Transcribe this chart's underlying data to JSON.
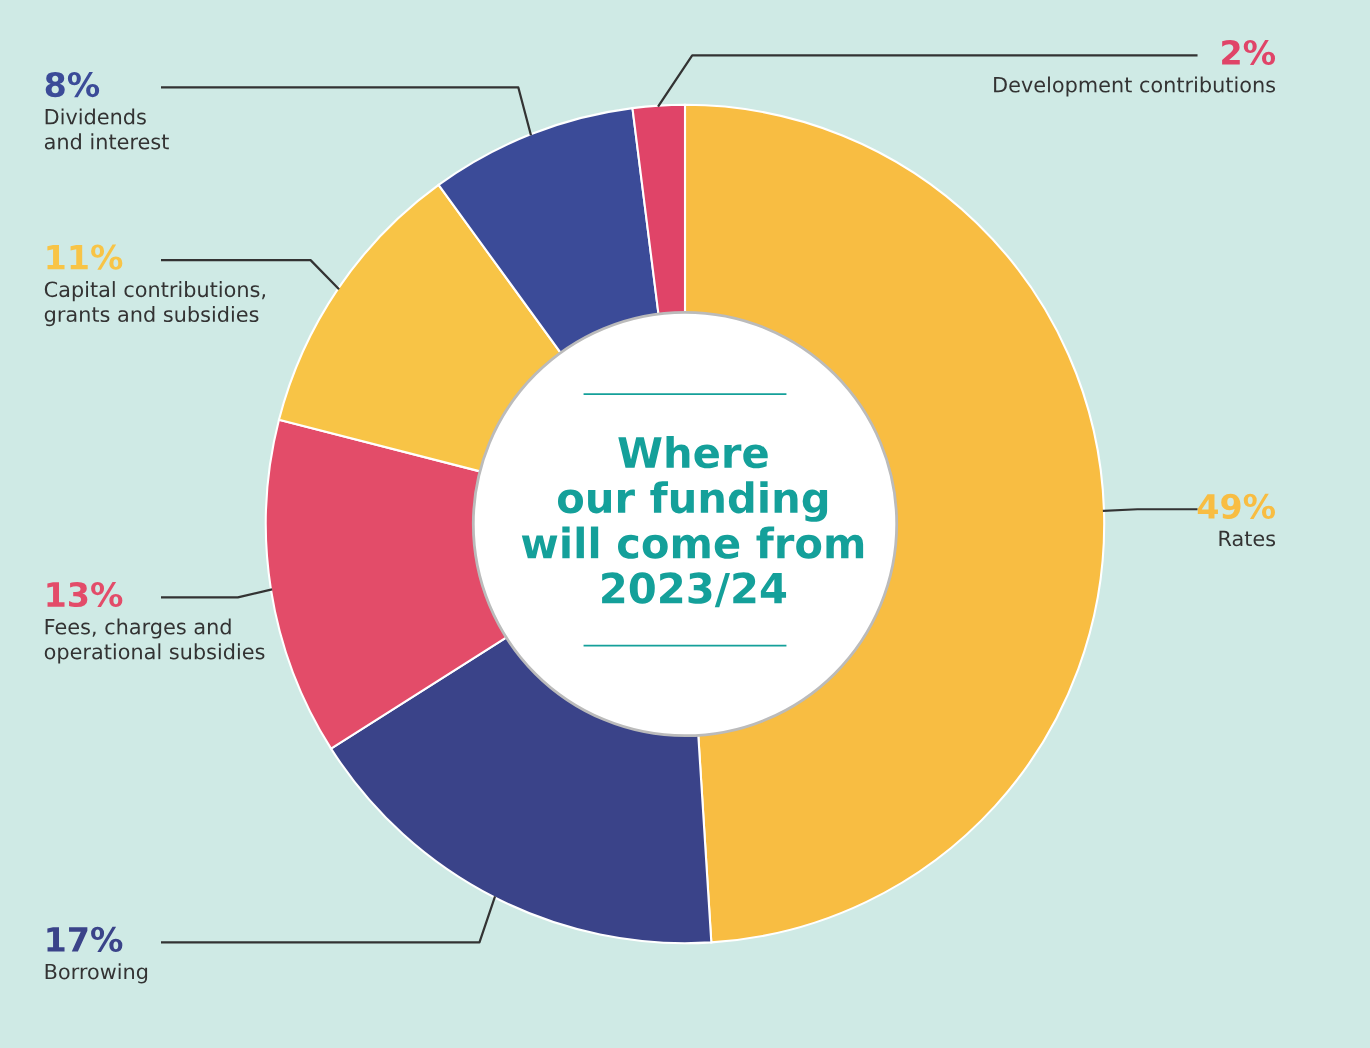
{
  "chart_data": {
    "type": "donut",
    "title": "Where\nour funding\nwill come from\n2023/24",
    "categories": [
      "Rates",
      "Borrowing",
      "Fees, charges and\noperational subsidies",
      "Capital contributions,\ngrants and subsidies",
      "Dividends\nand interest",
      "Development contributions"
    ],
    "values": [
      49,
      17,
      13,
      11,
      8,
      2
    ],
    "value_labels": [
      "49%",
      "17%",
      "13%",
      "11%",
      "8%",
      "2%"
    ],
    "colors": [
      "#f8bd42",
      "#3a4389",
      "#e34c69",
      "#f8c446",
      "#3b4b98",
      "#e04468"
    ]
  }
}
